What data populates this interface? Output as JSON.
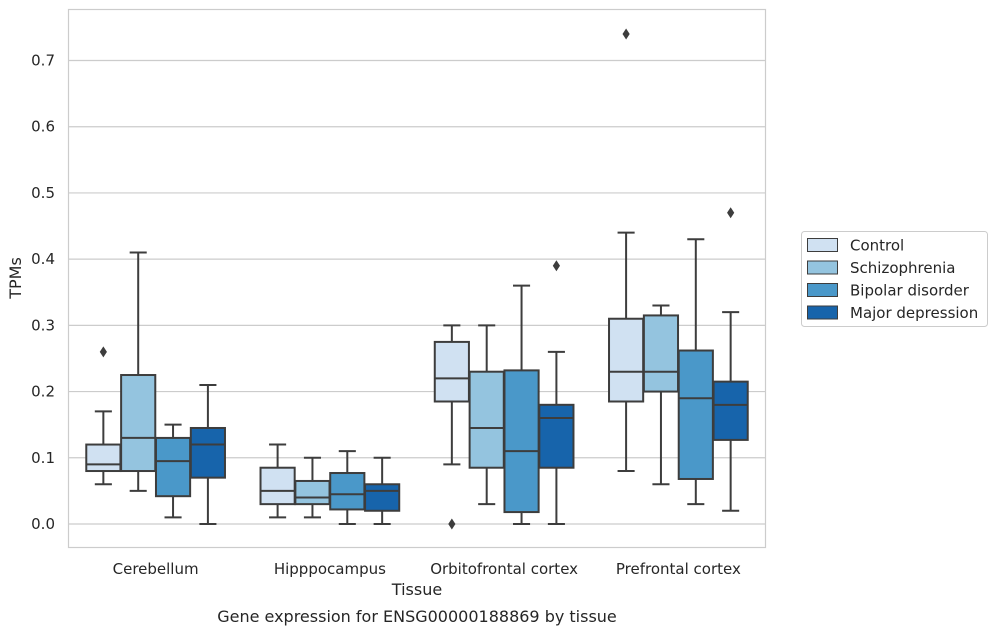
{
  "chart_data": {
    "type": "box",
    "xlabel": "Tissue",
    "ylabel": "TPMs",
    "caption": "Gene expression for ENSG00000188869 by tissue",
    "ylim": [
      -0.035,
      0.775
    ],
    "yticks": [
      "0.0",
      "0.1",
      "0.2",
      "0.3",
      "0.4",
      "0.5",
      "0.6",
      "0.7"
    ],
    "grid": "horizontal",
    "legend_position": "right",
    "categories": [
      "Cerebellum",
      "Hipppocampus",
      "Orbitofrontal cortex",
      "Prefrontal cortex"
    ],
    "series": [
      {
        "name": "Control",
        "color": "#d0e1f2",
        "boxes": [
          {
            "whislo": 0.06,
            "q1": 0.08,
            "med": 0.09,
            "q3": 0.12,
            "whishi": 0.17,
            "fliers": [
              0.26
            ]
          },
          {
            "whislo": 0.01,
            "q1": 0.03,
            "med": 0.05,
            "q3": 0.085,
            "whishi": 0.12,
            "fliers": []
          },
          {
            "whislo": 0.09,
            "q1": 0.185,
            "med": 0.22,
            "q3": 0.275,
            "whishi": 0.3,
            "fliers": [
              0.0
            ]
          },
          {
            "whislo": 0.08,
            "q1": 0.185,
            "med": 0.23,
            "q3": 0.31,
            "whishi": 0.44,
            "fliers": [
              0.74
            ]
          }
        ]
      },
      {
        "name": "Schizophrenia",
        "color": "#94c4df",
        "boxes": [
          {
            "whislo": 0.05,
            "q1": 0.08,
            "med": 0.13,
            "q3": 0.225,
            "whishi": 0.41,
            "fliers": []
          },
          {
            "whislo": 0.01,
            "q1": 0.03,
            "med": 0.04,
            "q3": 0.065,
            "whishi": 0.1,
            "fliers": []
          },
          {
            "whislo": 0.03,
            "q1": 0.085,
            "med": 0.145,
            "q3": 0.23,
            "whishi": 0.3,
            "fliers": []
          },
          {
            "whislo": 0.06,
            "q1": 0.2,
            "med": 0.23,
            "q3": 0.315,
            "whishi": 0.33,
            "fliers": []
          }
        ]
      },
      {
        "name": "Bipolar disorder",
        "color": "#4a98c9",
        "boxes": [
          {
            "whislo": 0.01,
            "q1": 0.042,
            "med": 0.095,
            "q3": 0.13,
            "whishi": 0.15,
            "fliers": []
          },
          {
            "whislo": 0.0,
            "q1": 0.022,
            "med": 0.045,
            "q3": 0.077,
            "whishi": 0.11,
            "fliers": []
          },
          {
            "whislo": 0.0,
            "q1": 0.018,
            "med": 0.11,
            "q3": 0.232,
            "whishi": 0.36,
            "fliers": []
          },
          {
            "whislo": 0.03,
            "q1": 0.068,
            "med": 0.19,
            "q3": 0.262,
            "whishi": 0.43,
            "fliers": []
          }
        ]
      },
      {
        "name": "Major depression",
        "color": "#1764ab",
        "boxes": [
          {
            "whislo": 0.0,
            "q1": 0.07,
            "med": 0.12,
            "q3": 0.145,
            "whishi": 0.21,
            "fliers": []
          },
          {
            "whislo": 0.0,
            "q1": 0.02,
            "med": 0.05,
            "q3": 0.06,
            "whishi": 0.1,
            "fliers": []
          },
          {
            "whislo": 0.0,
            "q1": 0.085,
            "med": 0.16,
            "q3": 0.18,
            "whishi": 0.26,
            "fliers": [
              0.39
            ]
          },
          {
            "whislo": 0.02,
            "q1": 0.127,
            "med": 0.18,
            "q3": 0.215,
            "whishi": 0.32,
            "fliers": [
              0.47
            ]
          }
        ]
      }
    ]
  }
}
